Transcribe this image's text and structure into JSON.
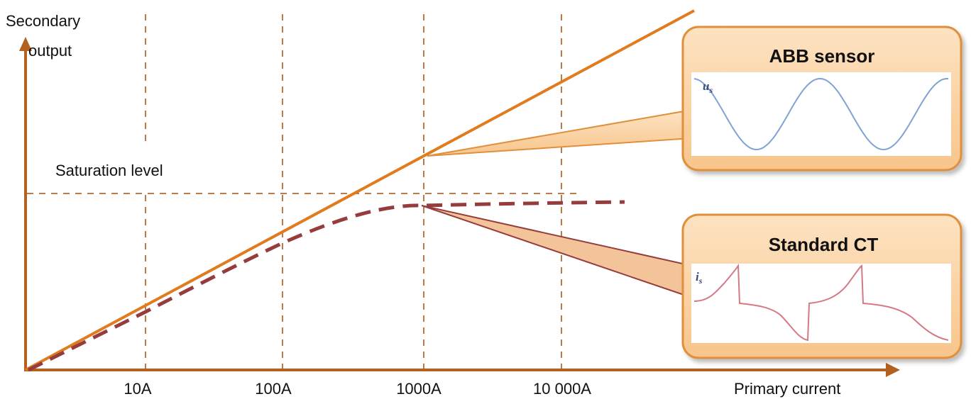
{
  "y_axis_label": [
    "Secondary",
    "output"
  ],
  "x_axis_label": "Primary current",
  "x_ticks": [
    "10A",
    "100A",
    "1000A",
    "10 000A"
  ],
  "saturation_label": "Saturation level",
  "callouts": {
    "sensor": {
      "title": "ABB sensor",
      "signal_label": "u",
      "signal_subscript": "s"
    },
    "ct": {
      "title": "Standard CT",
      "signal_label": "i",
      "signal_subscript": "s"
    }
  },
  "colors": {
    "axis": "#b4601e",
    "grid": "#b97a4c",
    "sensor_line": "#e07c1e",
    "ct_line": "#963c3c",
    "callout_fill": "#fbd3a4",
    "callout_border": "#e0903c",
    "sensor_wave": "#7fa3d2",
    "ct_wave": "#d47a84"
  }
}
